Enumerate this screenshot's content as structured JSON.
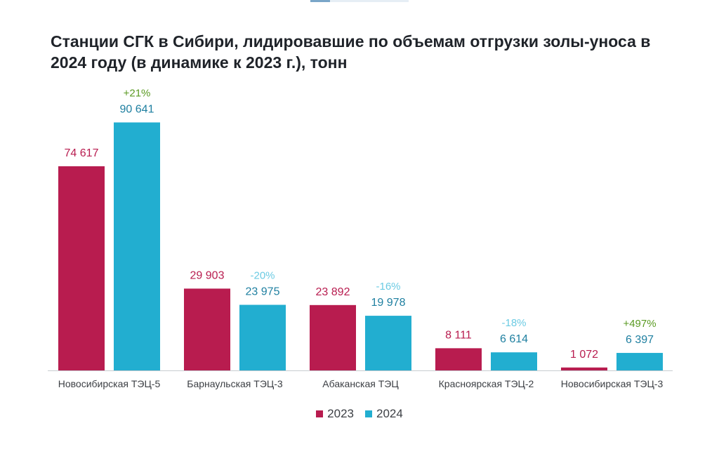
{
  "chart_data": {
    "type": "bar",
    "title": "Станции СГК в Сибири, лидировавшие по объемам отгрузки золы-уноса в 2024 году (в динамике к 2023 г.), тонн",
    "categories": [
      "Новосибирская ТЭЦ-5",
      "Барнаульская ТЭЦ-3",
      "Абаканская ТЭЦ",
      "Красноярская ТЭЦ-2",
      "Новосибирская ТЭЦ-3"
    ],
    "series": [
      {
        "name": "2023",
        "color": "#b81c4f",
        "values": [
          74617,
          29903,
          23892,
          8111,
          1072
        ],
        "labels": [
          "74 617",
          "29 903",
          "23 892",
          "8 111",
          "1 072"
        ]
      },
      {
        "name": "2024",
        "color": "#22aed0",
        "values": [
          90641,
          23975,
          19978,
          6614,
          6397
        ],
        "labels": [
          "90 641",
          "23 975",
          "19 978",
          "6 614",
          "6 397"
        ]
      }
    ],
    "changes": [
      "+21%",
      "-20%",
      "-16%",
      "-18%",
      "+497%"
    ],
    "change_colors": {
      "positive": "#5a9a22",
      "negative": "#6ccbe3"
    },
    "ylim": [
      0,
      100000
    ],
    "grid": false,
    "legend_position": "bottom-center"
  }
}
